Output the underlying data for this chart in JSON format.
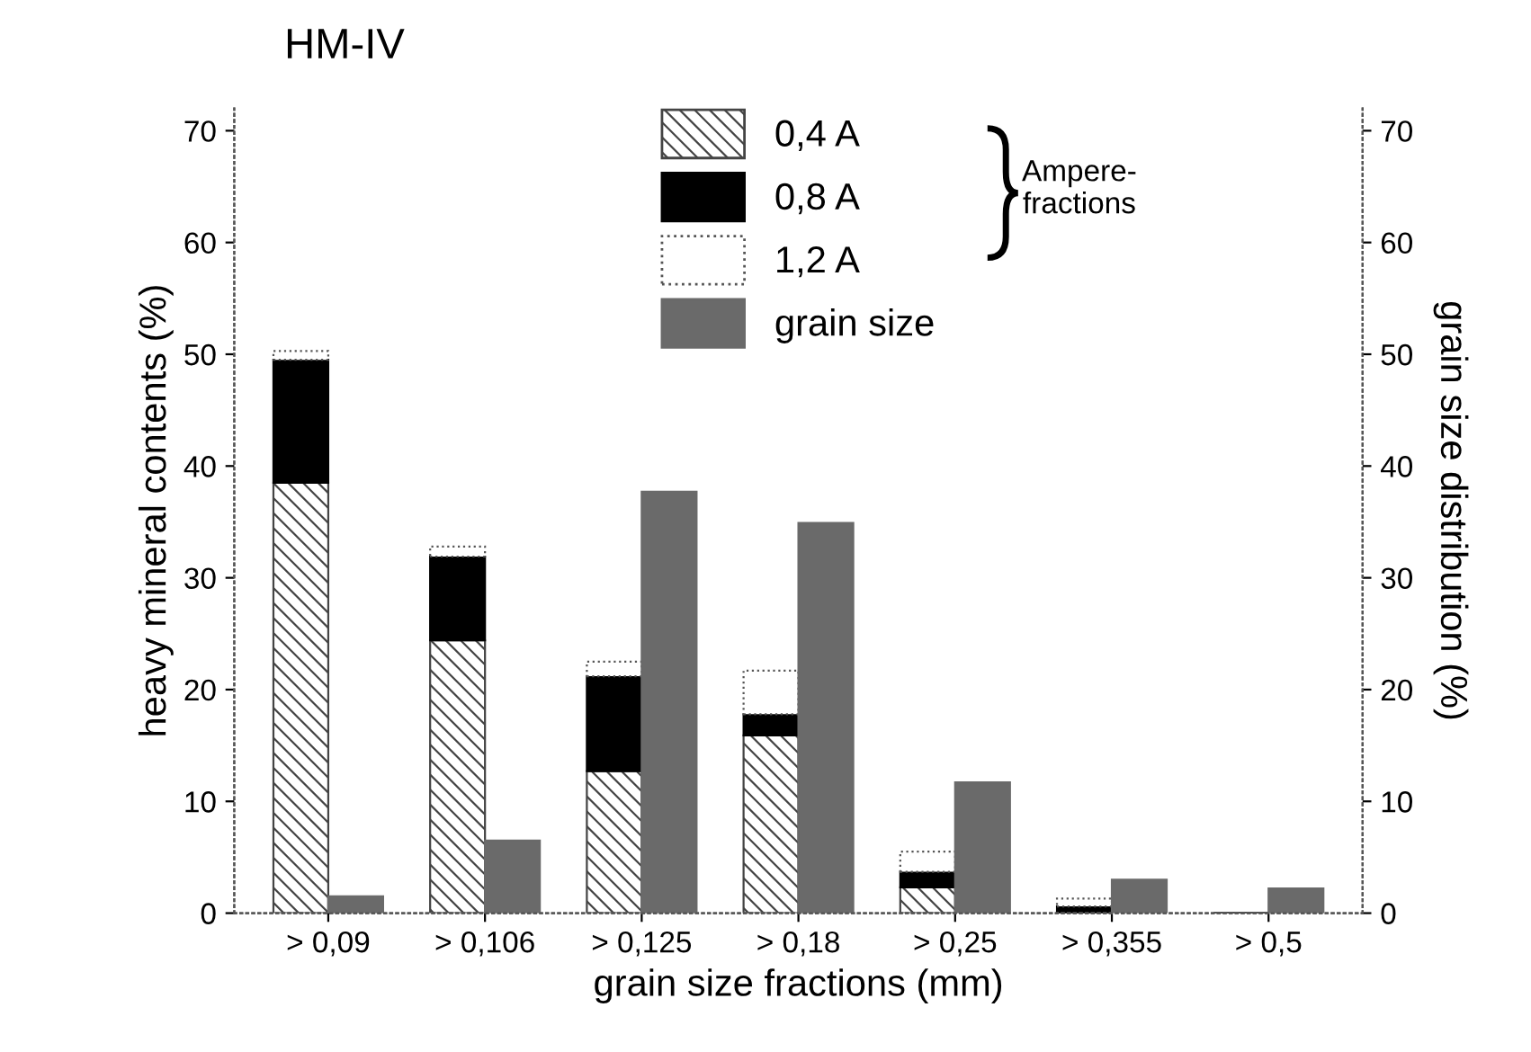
{
  "chart_data": {
    "type": "bar",
    "title": "HM-IV",
    "xlabel": "grain size fractions (mm)",
    "ylabel": "heavy mineral contents (%)",
    "y2label": "grain size distribution (%)",
    "categories": [
      "> 0,09",
      "> 0,106",
      "> 0,125",
      "> 0,18",
      "> 0,25",
      "> 0,355",
      "> 0,5"
    ],
    "stacked": true,
    "series": [
      {
        "name": "0,4 A",
        "color": "#444444",
        "values": [
          38.5,
          24.4,
          12.7,
          15.9,
          2.3,
          null,
          0
        ]
      },
      {
        "name": "0,8 A",
        "color": "#000000",
        "values": [
          11.0,
          7.5,
          8.5,
          1.9,
          1.4,
          0.6,
          0
        ]
      },
      {
        "name": "1,2 A",
        "color": "#ffffff",
        "values": [
          0.8,
          0.9,
          1.3,
          3.9,
          1.8,
          0.7,
          0
        ]
      },
      {
        "name": "grain size",
        "color": "#6a6a6a",
        "axis": "y2",
        "values": [
          1.5,
          6.5,
          37.7,
          34.9,
          11.7,
          3.0,
          2.2
        ]
      }
    ],
    "ylim": [
      0,
      72
    ],
    "yticks": [
      0,
      10,
      20,
      30,
      40,
      50,
      60,
      70
    ],
    "y2lim": [
      0,
      72
    ],
    "y2ticks": [
      0,
      10,
      20,
      30,
      40,
      50,
      60,
      70
    ],
    "annotations": [
      "Ampere-\nfractions"
    ],
    "legend": "top",
    "grid": false
  }
}
